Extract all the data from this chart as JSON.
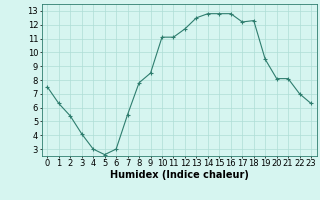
{
  "x": [
    0,
    1,
    2,
    3,
    4,
    5,
    6,
    7,
    8,
    9,
    10,
    11,
    12,
    13,
    14,
    15,
    16,
    17,
    18,
    19,
    20,
    21,
    22,
    23
  ],
  "y": [
    7.5,
    6.3,
    5.4,
    4.1,
    3.0,
    2.6,
    3.0,
    5.5,
    7.8,
    8.5,
    11.1,
    11.1,
    11.7,
    12.5,
    12.8,
    12.8,
    12.8,
    12.2,
    12.3,
    9.5,
    8.1,
    8.1,
    7.0,
    6.3
  ],
  "xlabel": "Humidex (Indice chaleur)",
  "ylim": [
    2.5,
    13.5
  ],
  "xlim": [
    -0.5,
    23.5
  ],
  "yticks": [
    3,
    4,
    5,
    6,
    7,
    8,
    9,
    10,
    11,
    12,
    13
  ],
  "xticks": [
    0,
    1,
    2,
    3,
    4,
    5,
    6,
    7,
    8,
    9,
    10,
    11,
    12,
    13,
    14,
    15,
    16,
    17,
    18,
    19,
    20,
    21,
    22,
    23
  ],
  "line_color": "#2e7d6e",
  "marker": "+",
  "bg_color": "#d6f5f0",
  "grid_color": "#aeddd6",
  "xlabel_fontsize": 7,
  "tick_fontsize": 6
}
